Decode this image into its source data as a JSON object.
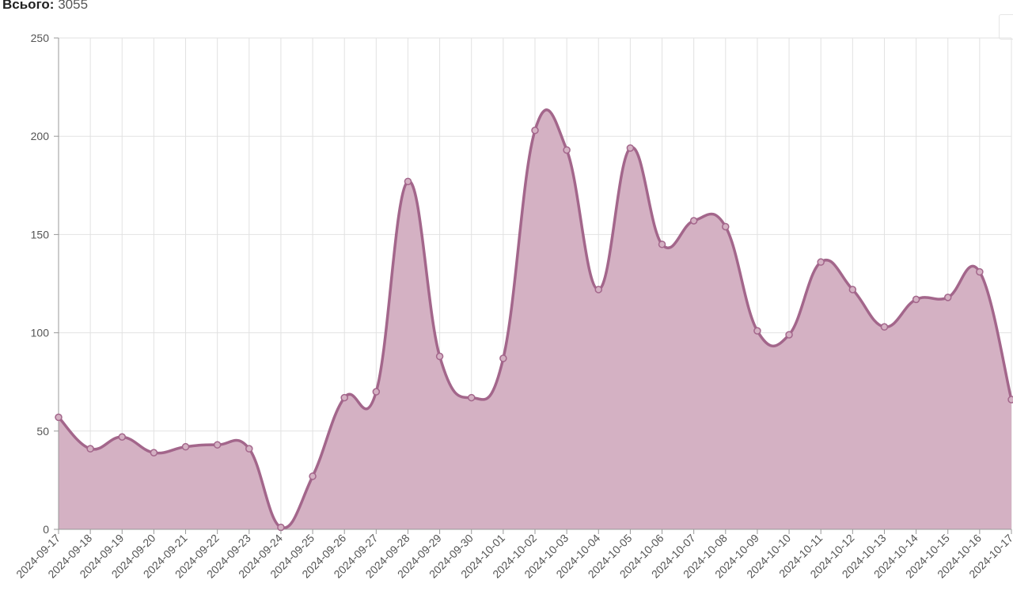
{
  "summary": {
    "total_label": "Всього:",
    "total_value": "3055"
  },
  "colors": {
    "line": "#a3668b",
    "fill": "#d4b1c3",
    "grid": "#e2e2e2",
    "axis": "#999999"
  },
  "chart_data": {
    "type": "area",
    "smooth": true,
    "grid": true,
    "ylim": [
      0,
      250
    ],
    "yticks": [
      0,
      50,
      100,
      150,
      200,
      250
    ],
    "categories": [
      "2024-09-17",
      "2024-09-18",
      "2024-09-19",
      "2024-09-20",
      "2024-09-21",
      "2024-09-22",
      "2024-09-23",
      "2024-09-24",
      "2024-09-25",
      "2024-09-26",
      "2024-09-27",
      "2024-09-28",
      "2024-09-29",
      "2024-09-30",
      "2024-10-01",
      "2024-10-02",
      "2024-10-03",
      "2024-10-04",
      "2024-10-05",
      "2024-10-06",
      "2024-10-07",
      "2024-10-08",
      "2024-10-09",
      "2024-10-10",
      "2024-10-11",
      "2024-10-12",
      "2024-10-13",
      "2024-10-14",
      "2024-10-15",
      "2024-10-16",
      "2024-10-17"
    ],
    "values": [
      57,
      41,
      47,
      39,
      42,
      43,
      41,
      1,
      27,
      67,
      70,
      177,
      88,
      67,
      87,
      203,
      193,
      122,
      194,
      145,
      157,
      154,
      101,
      99,
      136,
      122,
      103,
      117,
      118,
      131,
      66
    ]
  }
}
